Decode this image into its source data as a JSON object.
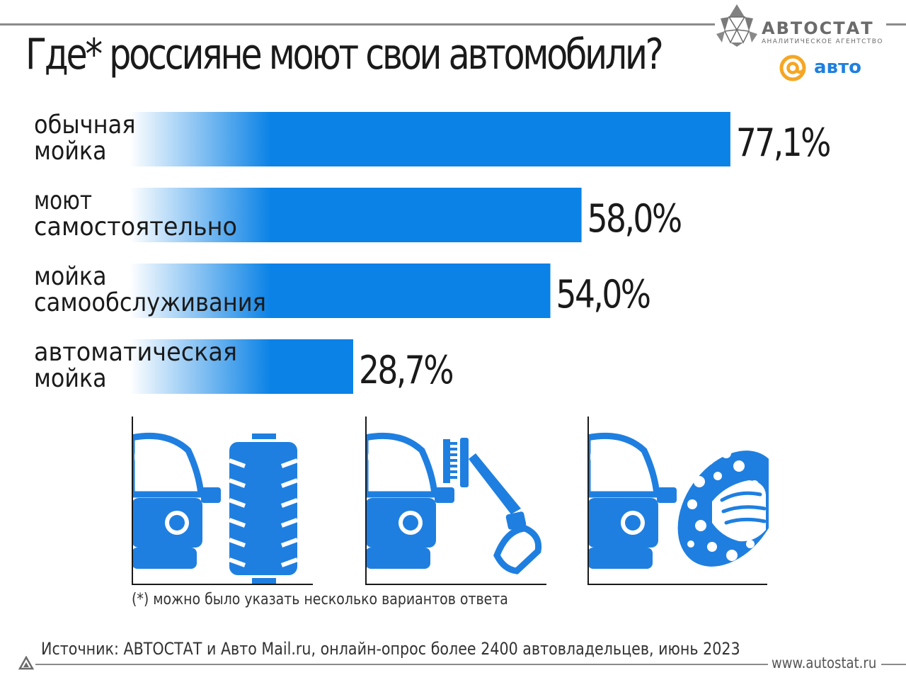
{
  "page": {
    "title": "Где* россияне моют свои автомобили?",
    "footnote": "(*) можно было указать несколько вариантов ответа",
    "source": "Источник: АВТОСТАТ и Авто Mail.ru, онлайн-опрос более 2400 автовладельцев, июнь 2023",
    "url": "www.autostat.ru"
  },
  "logos": {
    "avtostat": {
      "brand": "АВТОСТАТ",
      "tagline": "АНАЛИТИЧЕСКОЕ АГЕНТСТВО"
    },
    "mail_auto": {
      "word": "авто"
    }
  },
  "colors": {
    "bar": "#0a82e6",
    "text": "#1a1a1a",
    "rule": "#8a8a8a",
    "icon": "#1f7fe0",
    "mail_logo_orange": "#f5a623"
  },
  "icons": [
    "brush-car-wash-icon",
    "pressure-washer-icon",
    "hand-sponge-wash-icon"
  ],
  "chart_data": {
    "type": "bar",
    "orientation": "horizontal",
    "title": "Где* россияне моют свои автомобили?",
    "categories": [
      [
        "обычная",
        "мойка"
      ],
      [
        "моют",
        "самостоятельно"
      ],
      [
        "мойка",
        "самообслуживания"
      ],
      [
        "автоматическая",
        "мойка"
      ]
    ],
    "values": [
      77.1,
      58.0,
      54.0,
      28.7
    ],
    "value_labels": [
      "77,1%",
      "58,0%",
      "54,0%",
      "28,7%"
    ],
    "unit": "%",
    "xlim": [
      0,
      100
    ],
    "grid": false,
    "legend": "none",
    "bar_style": "gradient fading to white on the left"
  }
}
